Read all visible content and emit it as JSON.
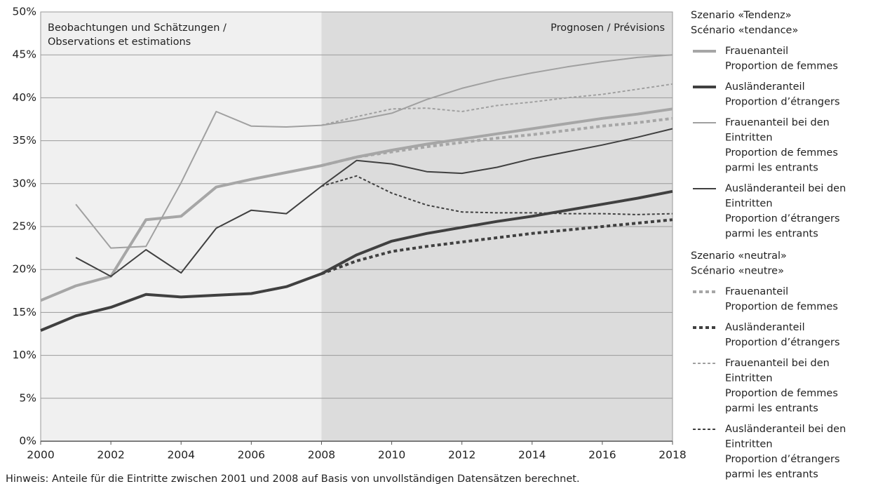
{
  "chart_data": {
    "type": "line",
    "region_labels": [
      "Beobachtungen und Schätzungen /\nObservations et estimations",
      "Prognosen / Prévisions"
    ],
    "note": "Hinweis: Anteile für die Eintritte zwischen 2001 und 2008 auf Basis von unvollständigen Datensätzen berechnet.",
    "x": [
      2000,
      2001,
      2002,
      2003,
      2004,
      2005,
      2006,
      2007,
      2008,
      2009,
      2010,
      2011,
      2012,
      2013,
      2014,
      2015,
      2016,
      2017,
      2018
    ],
    "xlim": [
      2000,
      2018
    ],
    "xticks": [
      2000,
      2002,
      2004,
      2006,
      2008,
      2010,
      2012,
      2014,
      2016,
      2018
    ],
    "ylim": [
      0,
      50
    ],
    "yticks": [
      {
        "value": 0,
        "label": "0%"
      },
      {
        "value": 5,
        "label": "5%"
      },
      {
        "value": 10,
        "label": "10%"
      },
      {
        "value": 15,
        "label": "15%"
      },
      {
        "value": 20,
        "label": "20%"
      },
      {
        "value": 25,
        "label": "25%"
      },
      {
        "value": 30,
        "label": "30%"
      },
      {
        "value": 35,
        "label": "35%"
      },
      {
        "value": 40,
        "label": "40%"
      },
      {
        "value": 45,
        "label": "45%"
      },
      {
        "value": 50,
        "label": "50%"
      }
    ],
    "grid": true,
    "scenarios": [
      {
        "name": "Szenario «Tendenz»\nScénario «tendance»",
        "line_style": "solid",
        "series": [
          {
            "name": "Frauenanteil\nProportion de femmes",
            "color": "#a6a6a6",
            "linewidth": 4,
            "values": [
              16.4,
              18.1,
              19.2,
              25.8,
              26.2,
              29.6,
              30.5,
              31.3,
              32.1,
              33.1,
              33.9,
              34.6,
              35.2,
              35.8,
              36.4,
              37.0,
              37.6,
              38.1,
              38.7
            ]
          },
          {
            "name": "Ausländeranteil\nProportion d’étrangers",
            "color": "#404040",
            "linewidth": 4,
            "values": [
              12.9,
              14.6,
              15.6,
              17.1,
              16.8,
              17.0,
              17.2,
              18.0,
              19.5,
              21.7,
              23.3,
              24.2,
              24.9,
              25.6,
              26.2,
              26.9,
              27.6,
              28.3,
              29.1
            ]
          },
          {
            "name": "Frauenanteil bei den\nEintritten\nProportion de femmes\nparmi les entrants",
            "color": "#a0a0a0",
            "linewidth": 2,
            "values": [
              null,
              27.6,
              22.5,
              22.7,
              30.1,
              38.4,
              36.7,
              36.6,
              36.8,
              37.4,
              38.2,
              39.8,
              41.1,
              42.1,
              42.9,
              43.6,
              44.2,
              44.7,
              45.0
            ]
          },
          {
            "name": "Ausländeranteil bei den\nEintritten\nProportion d’étrangers\nparmi les entrants",
            "color": "#404040",
            "linewidth": 2,
            "values": [
              null,
              21.4,
              19.2,
              22.3,
              19.6,
              24.8,
              26.9,
              26.5,
              29.7,
              32.7,
              32.3,
              31.4,
              31.2,
              31.9,
              32.9,
              33.7,
              34.5,
              35.4,
              36.4
            ]
          }
        ]
      },
      {
        "name": "Szenario «neutral»\nScénario «neutre»",
        "line_style": "dashed",
        "series": [
          {
            "name": "Frauenanteil\nProportion de femmes",
            "color": "#a6a6a6",
            "linewidth": 4,
            "values": [
              null,
              null,
              null,
              null,
              null,
              null,
              null,
              null,
              32.1,
              33.1,
              33.7,
              34.3,
              34.8,
              35.3,
              35.7,
              36.2,
              36.7,
              37.1,
              37.6
            ]
          },
          {
            "name": "Ausländeranteil\nProportion d’étrangers",
            "color": "#404040",
            "linewidth": 4,
            "values": [
              null,
              null,
              null,
              null,
              null,
              null,
              null,
              null,
              19.5,
              21.0,
              22.1,
              22.7,
              23.2,
              23.7,
              24.2,
              24.6,
              25.0,
              25.4,
              25.8
            ]
          },
          {
            "name": "Frauenanteil bei den\nEintritten\nProportion de femmes\nparmi les entrants",
            "color": "#a0a0a0",
            "linewidth": 2,
            "values": [
              null,
              null,
              null,
              null,
              null,
              null,
              null,
              null,
              36.8,
              37.8,
              38.7,
              38.8,
              38.4,
              39.1,
              39.5,
              40.0,
              40.4,
              41.0,
              41.6
            ]
          },
          {
            "name": "Ausländeranteil bei den\nEintritten\nProportion d’étrangers\nparmi les entrants",
            "color": "#404040",
            "linewidth": 2,
            "values": [
              null,
              null,
              null,
              null,
              null,
              null,
              null,
              null,
              29.7,
              30.9,
              28.9,
              27.5,
              26.7,
              26.6,
              26.6,
              26.5,
              26.5,
              26.4,
              26.5
            ]
          }
        ]
      }
    ]
  }
}
